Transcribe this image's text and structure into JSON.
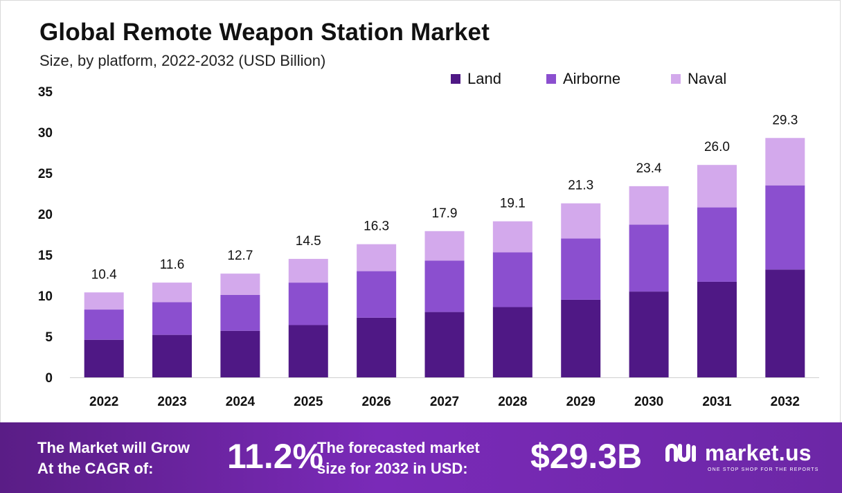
{
  "title": "Global Remote Weapon Station Market",
  "subtitle": "Size, by platform, 2022-2032 (USD Billion)",
  "legend": [
    {
      "label": "Land",
      "color": "#4f1885"
    },
    {
      "label": "Airborne",
      "color": "#8b4fcf"
    },
    {
      "label": "Naval",
      "color": "#d3a9ec"
    }
  ],
  "chart_data": {
    "type": "bar",
    "stacked": true,
    "categories": [
      "2022",
      "2023",
      "2024",
      "2025",
      "2026",
      "2027",
      "2028",
      "2029",
      "2030",
      "2031",
      "2032"
    ],
    "series": [
      {
        "name": "Land",
        "color": "#4f1885",
        "values": [
          4.6,
          5.2,
          5.7,
          6.4,
          7.3,
          8.0,
          8.6,
          9.5,
          10.5,
          11.7,
          13.2
        ]
      },
      {
        "name": "Airborne",
        "color": "#8b4fcf",
        "values": [
          3.7,
          4.0,
          4.4,
          5.2,
          5.7,
          6.3,
          6.7,
          7.5,
          8.2,
          9.1,
          10.3
        ]
      },
      {
        "name": "Naval",
        "color": "#d3a9ec",
        "values": [
          2.1,
          2.4,
          2.6,
          2.9,
          3.3,
          3.6,
          3.8,
          4.3,
          4.7,
          5.2,
          5.8
        ]
      }
    ],
    "totals": [
      "10.4",
      "11.6",
      "12.7",
      "14.5",
      "16.3",
      "17.9",
      "19.1",
      "21.3",
      "23.4",
      "26.0",
      "29.3"
    ],
    "ylim": [
      0,
      35
    ],
    "yticks": [
      "0",
      "5",
      "10",
      "15",
      "20",
      "25",
      "30",
      "35"
    ],
    "grid": false,
    "legend_position": "top-right"
  },
  "footer": {
    "cagr_line1": "The Market will Grow",
    "cagr_line2": "At the CAGR of:",
    "cagr_value": "11.2%",
    "forecast_line1": "The forecasted market",
    "forecast_line2": "size for 2032 in USD:",
    "forecast_value": "$29.3B",
    "brand": "market.us",
    "tagline": "ONE STOP SHOP FOR THE REPORTS"
  }
}
